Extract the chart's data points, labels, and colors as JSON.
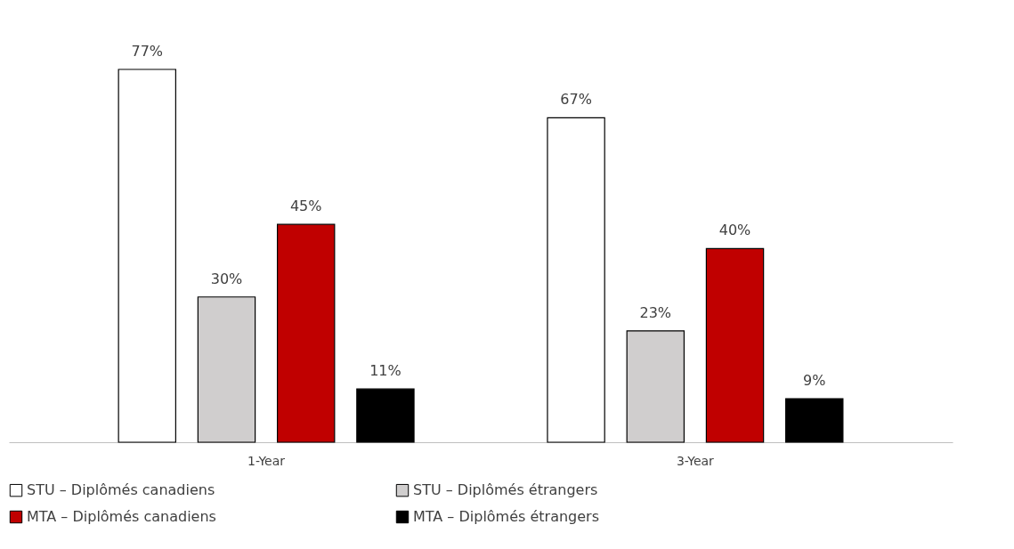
{
  "chart_data": {
    "type": "bar",
    "categories": [
      "1-Year",
      "3-Year"
    ],
    "series": [
      {
        "name": "STU – Diplômés canadiens",
        "color": "#ffffff",
        "values": [
          77,
          67
        ],
        "value_labels": [
          "77%",
          "67%"
        ]
      },
      {
        "name": "STU – Diplômés étrangers",
        "color": "#d0cece",
        "values": [
          30,
          23
        ],
        "value_labels": [
          "30%",
          "23%"
        ]
      },
      {
        "name": "MTA – Diplômés canadiens",
        "color": "#c00000",
        "values": [
          45,
          40
        ],
        "value_labels": [
          "45%",
          "40%"
        ]
      },
      {
        "name": "MTA – Diplômés étrangers",
        "color": "#000000",
        "values": [
          11,
          9
        ],
        "value_labels": [
          "11%",
          "9%"
        ]
      }
    ],
    "tick_labels": "x",
    "grid": false,
    "legend": "bottom"
  }
}
